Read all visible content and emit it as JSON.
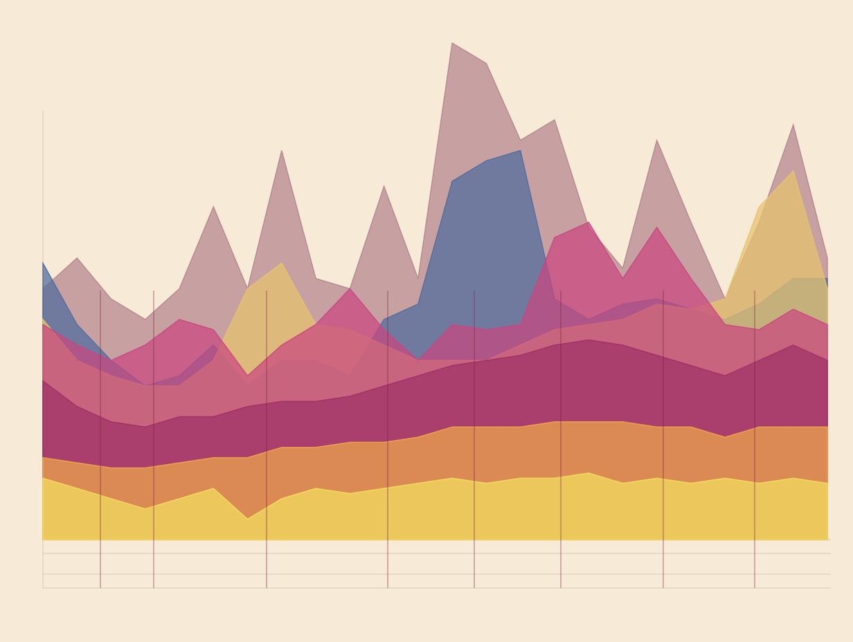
{
  "chart_data": {
    "type": "area",
    "categories": [
      null,
      null,
      null,
      null,
      null,
      null,
      null,
      null,
      null,
      null,
      null,
      null,
      null,
      null,
      null,
      null,
      null,
      null,
      null,
      null,
      null,
      null,
      null,
      null
    ],
    "ylim": [
      0,
      100
    ],
    "series": [
      {
        "color": "#b4858e",
        "values": [
          49,
          55,
          47,
          43,
          49,
          65,
          49,
          76,
          51,
          49,
          69,
          51,
          97,
          93,
          78,
          82,
          61,
          53,
          78,
          62,
          47,
          62,
          81,
          55
        ]
      },
      {
        "color": "#4f6b9c",
        "values": [
          54,
          42,
          35,
          30,
          32,
          38,
          30,
          35,
          35,
          32,
          43,
          46,
          70,
          74,
          76,
          47,
          43,
          46,
          47,
          45,
          43,
          46,
          51,
          51
        ]
      },
      {
        "color": "#e6c36e",
        "values": [
          43,
          35,
          32,
          30,
          30,
          35,
          49,
          54,
          42,
          41,
          38,
          35,
          35,
          35,
          38,
          41,
          42,
          43,
          46,
          45,
          47,
          65,
          72,
          49
        ]
      },
      {
        "color": "#c9467f",
        "values": [
          42,
          38,
          35,
          38,
          43,
          41,
          32,
          38,
          42,
          49,
          41,
          35,
          42,
          41,
          42,
          59,
          62,
          51,
          61,
          51,
          42,
          41,
          45,
          42
        ]
      },
      {
        "color": "#9e2f66",
        "values": [
          31,
          26,
          23,
          22,
          24,
          24,
          26,
          27,
          27,
          28,
          30,
          32,
          34,
          35,
          36,
          38,
          39,
          38,
          36,
          34,
          32,
          35,
          38,
          35
        ]
      },
      {
        "color": "#efa84a",
        "values": [
          16,
          15,
          14,
          14,
          15,
          16,
          16,
          18,
          18,
          19,
          19,
          20,
          22,
          22,
          22,
          23,
          23,
          23,
          22,
          22,
          20,
          22,
          22,
          22
        ]
      },
      {
        "color": "#f3df5e",
        "values": [
          12,
          10,
          8,
          6,
          8,
          10,
          4,
          8,
          10,
          9,
          10,
          11,
          12,
          11,
          12,
          12,
          13,
          11,
          12,
          11,
          12,
          11,
          12,
          11
        ]
      }
    ]
  }
}
